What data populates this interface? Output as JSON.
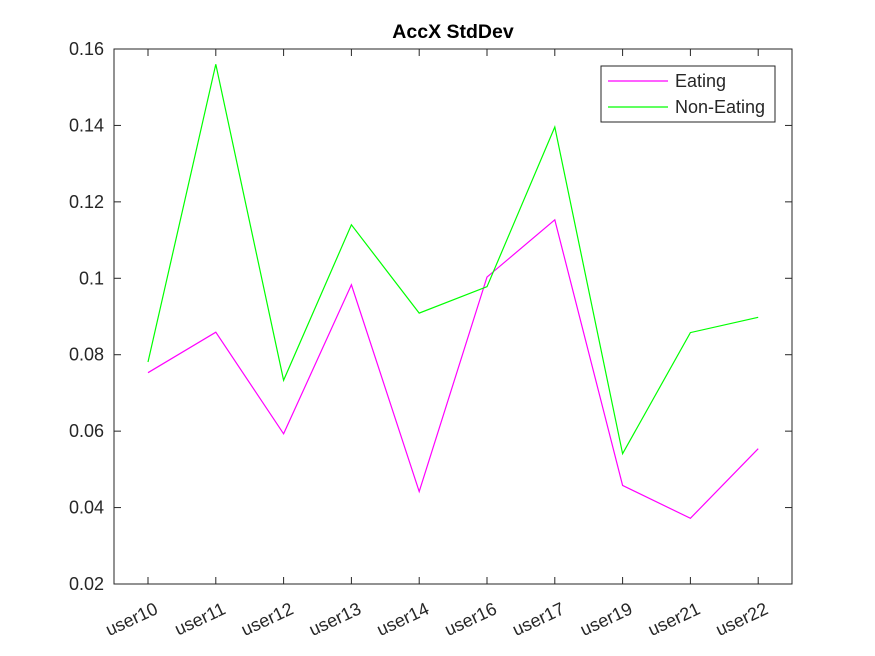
{
  "chart_data": {
    "type": "line",
    "title": "AccX StdDev",
    "xlabel": "",
    "ylabel": "",
    "categories": [
      "user10",
      "user11",
      "user12",
      "user13",
      "user14",
      "user16",
      "user17",
      "user19",
      "user21",
      "user22"
    ],
    "ylim": [
      0.02,
      0.16
    ],
    "yticks": [
      "0.02",
      "0.04",
      "0.06",
      "0.08",
      "0.1",
      "0.12",
      "0.14",
      "0.16"
    ],
    "grid": false,
    "legend_position": "top-right",
    "series": [
      {
        "name": "Eating",
        "color": "#ff00ff",
        "values": [
          0.0753,
          0.0859,
          0.0593,
          0.0983,
          0.0442,
          0.1003,
          0.1153,
          0.0458,
          0.0372,
          0.0554
        ]
      },
      {
        "name": "Non-Eating",
        "color": "#00ff00",
        "values": [
          0.0781,
          0.156,
          0.0733,
          0.114,
          0.0909,
          0.0978,
          0.1396,
          0.0541,
          0.0858,
          0.0898
        ]
      }
    ]
  }
}
